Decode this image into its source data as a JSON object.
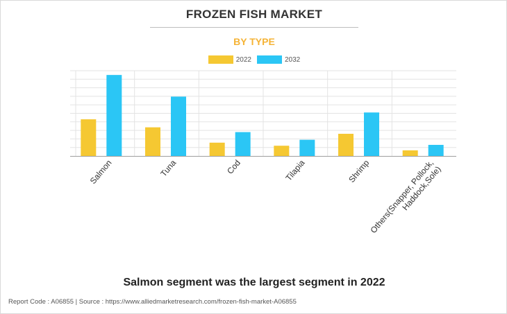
{
  "header": {
    "title": "FROZEN FISH MARKET",
    "subtitle": "BY TYPE"
  },
  "caption": "Salmon segment was the largest segment in 2022",
  "footer": "Report Code : A06855  |  Source : https://www.alliedmarketresearch.com/frozen-fish-market-A06855",
  "colors": {
    "series_2022": "#f5c832",
    "series_2032": "#2bc6f5",
    "subtitle": "#f5b335"
  },
  "chart_data": {
    "type": "bar",
    "title": "FROZEN FISH MARKET",
    "subtitle": "BY TYPE",
    "categories": [
      "Salmon",
      "Tuna",
      "Cod",
      "Tilapia",
      "Shrimp",
      "Others(Snapper, Pollock, Haddock,Sole)"
    ],
    "series": [
      {
        "name": "2022",
        "values": [
          21.5,
          16.8,
          7.8,
          6.0,
          13.0,
          3.3
        ]
      },
      {
        "name": "2032",
        "values": [
          47.5,
          34.8,
          14.0,
          9.5,
          25.5,
          6.5
        ]
      }
    ],
    "ylim": [
      0,
      50
    ],
    "ytick_step": 5,
    "yticks_labeled": false,
    "grid": true,
    "legend": "top-center",
    "xlabel": "",
    "ylabel": ""
  }
}
